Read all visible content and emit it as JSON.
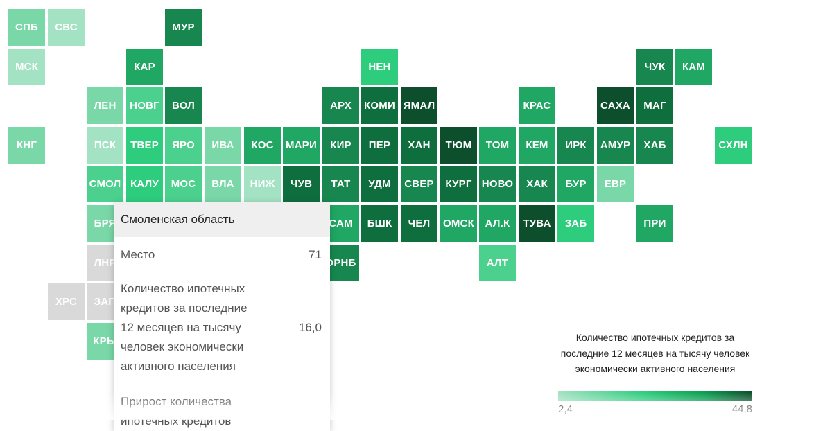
{
  "colors": {
    "lightest": "#a3e2c2",
    "light": "#7ad8a8",
    "mid_light": "#4cd08e",
    "mid": "#2ecc7d",
    "mid_dark": "#1fa763",
    "dark": "#17874f",
    "darker": "#0f6e3d",
    "darkest": "#0d4f2c",
    "grey": "#d9d9d9"
  },
  "regions": [
    {
      "code": "СПБ",
      "col": 0,
      "row": 0,
      "shade": "light"
    },
    {
      "code": "СВС",
      "col": 1,
      "row": 0,
      "shade": "lightest"
    },
    {
      "code": "МУР",
      "col": 4,
      "row": 0,
      "shade": "dark"
    },
    {
      "code": "МСК",
      "col": 0,
      "row": 1,
      "shade": "lightest"
    },
    {
      "code": "КАР",
      "col": 3,
      "row": 1,
      "shade": "mid_dark"
    },
    {
      "code": "НЕН",
      "col": 9,
      "row": 1,
      "shade": "mid"
    },
    {
      "code": "ЧУК",
      "col": 16,
      "row": 1,
      "shade": "dark"
    },
    {
      "code": "КАМ",
      "col": 17,
      "row": 1,
      "shade": "mid_dark"
    },
    {
      "code": "ЛЕН",
      "col": 2,
      "row": 2,
      "shade": "light"
    },
    {
      "code": "НОВГ",
      "col": 3,
      "row": 2,
      "shade": "mid_light"
    },
    {
      "code": "ВОЛ",
      "col": 4,
      "row": 2,
      "shade": "dark"
    },
    {
      "code": "АРХ",
      "col": 8,
      "row": 2,
      "shade": "dark"
    },
    {
      "code": "КОМИ",
      "col": 9,
      "row": 2,
      "shade": "darker"
    },
    {
      "code": "ЯМАЛ",
      "col": 10,
      "row": 2,
      "shade": "darkest"
    },
    {
      "code": "КРАС",
      "col": 13,
      "row": 2,
      "shade": "mid_dark"
    },
    {
      "code": "САХА",
      "col": 15,
      "row": 2,
      "shade": "darkest"
    },
    {
      "code": "МАГ",
      "col": 16,
      "row": 2,
      "shade": "darker"
    },
    {
      "code": "КНГ",
      "col": 0,
      "row": 3,
      "shade": "light"
    },
    {
      "code": "ПСК",
      "col": 2,
      "row": 3,
      "shade": "lightest"
    },
    {
      "code": "ТВЕР",
      "col": 3,
      "row": 3,
      "shade": "mid"
    },
    {
      "code": "ЯРО",
      "col": 4,
      "row": 3,
      "shade": "mid_light"
    },
    {
      "code": "ИВА",
      "col": 5,
      "row": 3,
      "shade": "light"
    },
    {
      "code": "КОС",
      "col": 6,
      "row": 3,
      "shade": "mid_dark"
    },
    {
      "code": "МАРИ",
      "col": 7,
      "row": 3,
      "shade": "mid_dark"
    },
    {
      "code": "КИР",
      "col": 8,
      "row": 3,
      "shade": "dark"
    },
    {
      "code": "ПЕР",
      "col": 9,
      "row": 3,
      "shade": "darker"
    },
    {
      "code": "ХАН",
      "col": 10,
      "row": 3,
      "shade": "darker"
    },
    {
      "code": "ТЮМ",
      "col": 11,
      "row": 3,
      "shade": "darkest"
    },
    {
      "code": "ТОМ",
      "col": 12,
      "row": 3,
      "shade": "mid_dark"
    },
    {
      "code": "КЕМ",
      "col": 13,
      "row": 3,
      "shade": "mid_dark"
    },
    {
      "code": "ИРК",
      "col": 14,
      "row": 3,
      "shade": "dark"
    },
    {
      "code": "АМУР",
      "col": 15,
      "row": 3,
      "shade": "dark"
    },
    {
      "code": "ХАБ",
      "col": 16,
      "row": 3,
      "shade": "dark"
    },
    {
      "code": "СХЛН",
      "col": 18,
      "row": 3,
      "shade": "mid"
    },
    {
      "code": "СМОЛ",
      "col": 2,
      "row": 4,
      "shade": "mid_light",
      "selected": true
    },
    {
      "code": "КАЛУ",
      "col": 3,
      "row": 4,
      "shade": "mid"
    },
    {
      "code": "МОС",
      "col": 4,
      "row": 4,
      "shade": "mid_light"
    },
    {
      "code": "ВЛА",
      "col": 5,
      "row": 4,
      "shade": "light"
    },
    {
      "code": "НИЖ",
      "col": 6,
      "row": 4,
      "shade": "lightest"
    },
    {
      "code": "ЧУВ",
      "col": 7,
      "row": 4,
      "shade": "darker"
    },
    {
      "code": "ТАТ",
      "col": 8,
      "row": 4,
      "shade": "dark"
    },
    {
      "code": "УДМ",
      "col": 9,
      "row": 4,
      "shade": "darker"
    },
    {
      "code": "СВЕР",
      "col": 10,
      "row": 4,
      "shade": "dark"
    },
    {
      "code": "КУРГ",
      "col": 11,
      "row": 4,
      "shade": "darker"
    },
    {
      "code": "НОВО",
      "col": 12,
      "row": 4,
      "shade": "dark"
    },
    {
      "code": "ХАК",
      "col": 13,
      "row": 4,
      "shade": "dark"
    },
    {
      "code": "БУР",
      "col": 14,
      "row": 4,
      "shade": "mid_dark"
    },
    {
      "code": "ЕВР",
      "col": 15,
      "row": 4,
      "shade": "light"
    },
    {
      "code": "БРЯ",
      "col": 2,
      "row": 5,
      "shade": "light"
    },
    {
      "code": "САМ",
      "col": 8,
      "row": 5,
      "shade": "mid_dark"
    },
    {
      "code": "БШК",
      "col": 9,
      "row": 5,
      "shade": "darker"
    },
    {
      "code": "ЧЕЛ",
      "col": 10,
      "row": 5,
      "shade": "darker"
    },
    {
      "code": "ОМСК",
      "col": 11,
      "row": 5,
      "shade": "mid_dark"
    },
    {
      "code": "АЛ.К",
      "col": 12,
      "row": 5,
      "shade": "mid_dark"
    },
    {
      "code": "ТУВА",
      "col": 13,
      "row": 5,
      "shade": "darkest"
    },
    {
      "code": "ЗАБ",
      "col": 14,
      "row": 5,
      "shade": "mid"
    },
    {
      "code": "ПРИ",
      "col": 16,
      "row": 5,
      "shade": "mid_dark"
    },
    {
      "code": "ЛНР",
      "col": 2,
      "row": 6,
      "shade": "grey"
    },
    {
      "code": "ОРНБ",
      "col": 8,
      "row": 6,
      "shade": "dark"
    },
    {
      "code": "АЛТ",
      "col": 12,
      "row": 6,
      "shade": "mid_light"
    },
    {
      "code": "ХРС",
      "col": 1,
      "row": 7,
      "shade": "grey"
    },
    {
      "code": "ЗАП",
      "col": 2,
      "row": 7,
      "shade": "grey"
    },
    {
      "code": "КРЫ",
      "col": 2,
      "row": 8,
      "shade": "light"
    }
  ],
  "tooltip": {
    "region": "Смоленская область",
    "rank_label": "Место",
    "rank_value": "71",
    "metric_label": "Количество ипотечных кредитов за последние 12 месяцев на тысячу человек экономически активного населения",
    "metric_value": "16,0",
    "growth_label": "Прирост количества ипотечных кредитов"
  },
  "legend": {
    "title": "Количество ипотечных кредитов за последние 12 месяцев на тысячу человек экономически активного населения",
    "min": "2,4",
    "max": "44,8"
  }
}
